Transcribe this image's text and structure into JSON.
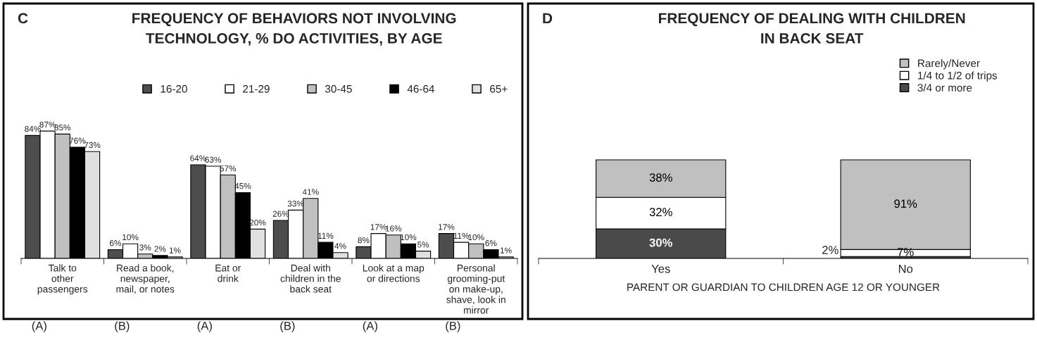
{
  "chart_data": [
    {
      "type": "bar",
      "title": "FREQUENCY OF BEHAVIORS NOT INVOLVING\nTECHNOLOGY, % DO ACTIVITIES, BY AGE",
      "categories": [
        "Talk to\nother\npassengers",
        "Read a book,\nnewspaper,\nmail, or notes",
        "Eat or\ndrink",
        "Deal with\nchildren in the\nback seat",
        "Look at a map\nor directions",
        "Personal\ngrooming-put\non make-up,\nshave, look in\nmirror"
      ],
      "series": [
        {
          "name": "16-20",
          "color": "#4d4d4d",
          "values": [
            84,
            6,
            64,
            26,
            8,
            17
          ],
          "value_labels": [
            "84%",
            "6%",
            "64%",
            "26%",
            "8%",
            "17%"
          ]
        },
        {
          "name": "21-29",
          "color": "#ffffff",
          "values": [
            87,
            10,
            63,
            33,
            17,
            11
          ],
          "value_labels": [
            "87%",
            "10%",
            "63%",
            "33%",
            "17%",
            "11%"
          ]
        },
        {
          "name": "30-45",
          "color": "#c0c0c0",
          "values": [
            85,
            3,
            57,
            41,
            16,
            10
          ],
          "value_labels": [
            "85%",
            "3%",
            "57%",
            "41%",
            "16%",
            "10%"
          ]
        },
        {
          "name": "46-64",
          "color": "#000000",
          "values": [
            76,
            2,
            45,
            11,
            10,
            6
          ],
          "value_labels": [
            "76%",
            "2%",
            "45%",
            "11%",
            "10%",
            "6%"
          ]
        },
        {
          "name": "65+",
          "color": "#e0e0e0",
          "values": [
            73,
            1,
            20,
            4,
            5,
            1
          ],
          "value_labels": [
            "73%",
            "1%",
            "20%",
            "4%",
            "5%",
            "1%"
          ]
        }
      ],
      "legend": "top right",
      "annotations": [
        "C",
        "(A)",
        "(B)",
        "(A)",
        "(B)",
        "(A)",
        "(B)"
      ]
    },
    {
      "type": "bar",
      "stacked": true,
      "title": "FREQUENCY OF DEALING WITH CHILDREN\nIN BACK SEAT",
      "xlabel": "PARENT OR GUARDIAN TO CHILDREN AGE 12 OR YOUNGER",
      "categories": [
        "Yes",
        "No"
      ],
      "series": [
        {
          "name": "3/4 or more",
          "color": "#4a4a4a",
          "values": [
            30,
            2
          ],
          "value_labels": [
            "30%",
            "2%"
          ]
        },
        {
          "name": "1/4 to 1/2 of trips",
          "color": "#ffffff",
          "values": [
            32,
            7
          ],
          "value_labels": [
            "32%",
            "7%"
          ]
        },
        {
          "name": "Rarely/Never",
          "color": "#c0c0c0",
          "values": [
            38,
            91
          ],
          "value_labels": [
            "38%",
            "91%"
          ]
        }
      ],
      "legend": "top right",
      "annotations": [
        "D"
      ]
    }
  ]
}
